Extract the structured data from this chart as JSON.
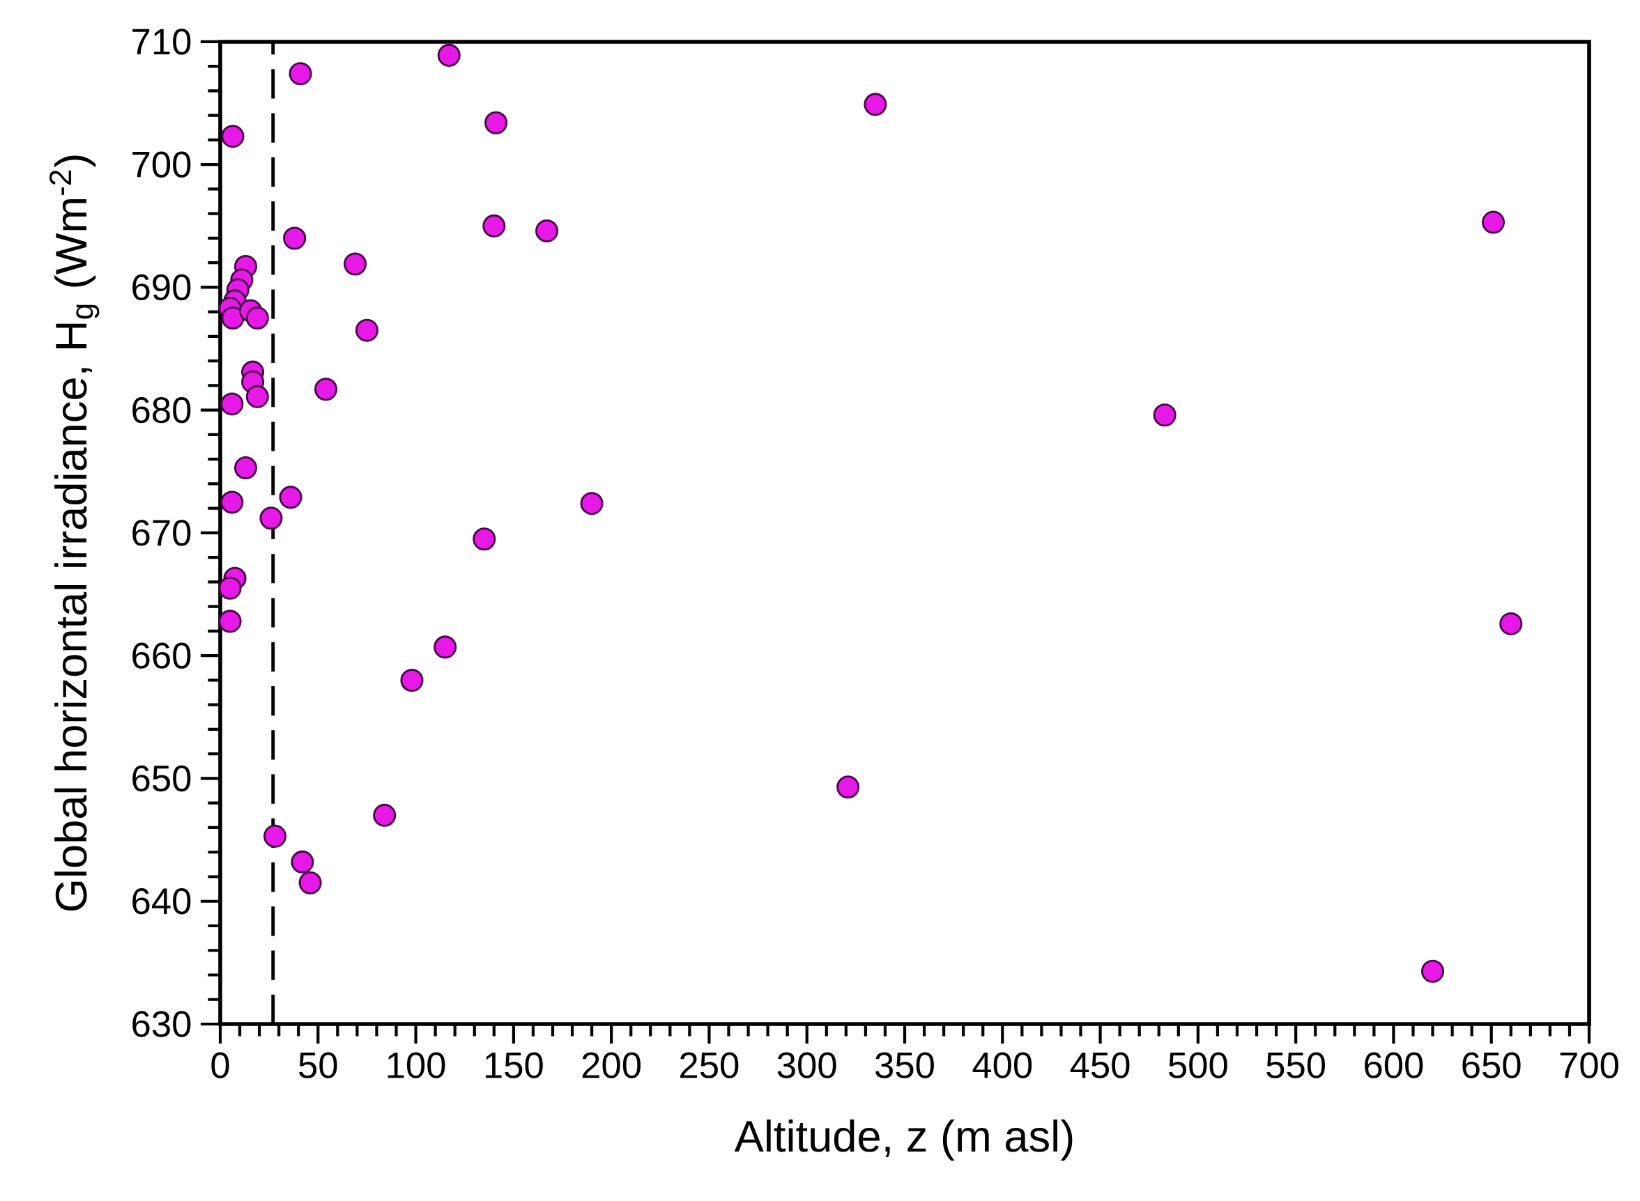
{
  "chart_data": {
    "type": "scatter",
    "xlabel": "Altitude, z (m asl)",
    "ylabel": "Global horizontal irradiance, H$_{g}$ (Wm$^{-2}$)",
    "x": [
      117,
      41,
      335,
      141,
      6.4,
      140,
      167,
      651,
      38,
      69,
      13,
      11,
      9,
      7.5,
      5,
      6.4,
      15.5,
      19,
      75,
      16.6,
      16.6,
      19,
      54,
      6,
      483,
      13,
      6,
      36,
      190,
      26,
      135,
      7.5,
      5,
      5,
      660,
      115,
      98,
      321,
      84,
      28,
      42,
      46,
      620
    ],
    "values": [
      708.9,
      707.4,
      704.9,
      703.4,
      702.3,
      695.0,
      694.6,
      695.3,
      694.0,
      691.9,
      691.7,
      690.6,
      689.8,
      688.9,
      688.3,
      687.5,
      688.1,
      687.5,
      686.5,
      683.1,
      682.3,
      681.1,
      681.7,
      680.5,
      679.6,
      675.3,
      672.5,
      672.9,
      672.4,
      671.2,
      669.5,
      666.3,
      665.5,
      662.8,
      662.6,
      660.7,
      658.0,
      649.3,
      647.0,
      645.3,
      643.2,
      641.5,
      634.3
    ],
    "color": "#e619e6",
    "marker": "circle",
    "xlim": [
      0,
      700
    ],
    "ylim": [
      630,
      710
    ],
    "xticks": [
      0,
      50,
      100,
      150,
      200,
      250,
      300,
      350,
      400,
      450,
      500,
      550,
      600,
      650,
      700
    ],
    "yticks": [
      630,
      640,
      650,
      660,
      670,
      680,
      690,
      700,
      710
    ],
    "ref_lines": [
      {
        "axis": "x",
        "value": 27,
        "line_style": "dashed"
      }
    ]
  }
}
